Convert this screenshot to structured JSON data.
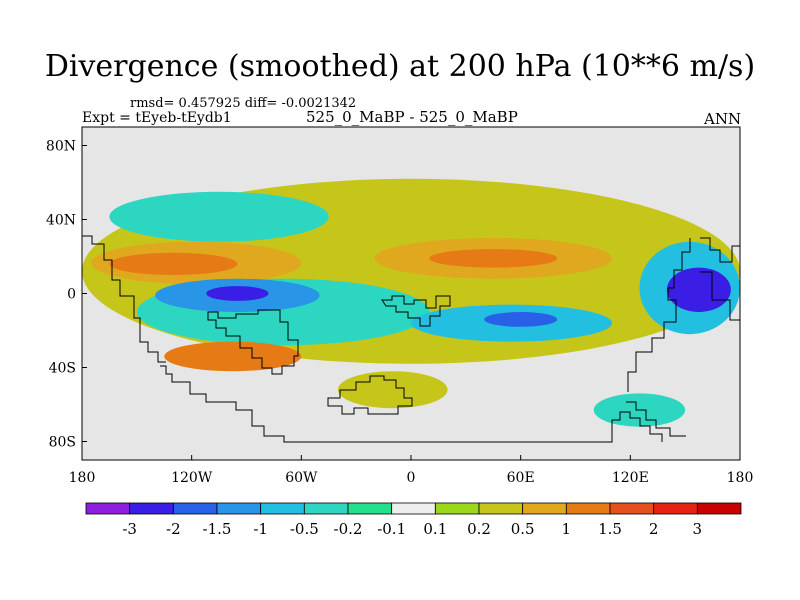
{
  "header": {
    "title": "Divergence (smoothed) at 200 hPa (10**6 m/s)",
    "stats": "rmsd= 0.457925 diff= -0.0021342",
    "experiment": "Expt = tEyeb-tEydb1",
    "cases": "525_0_MaBP - 525_0_MaBP",
    "season": "ANN"
  },
  "chart_data": {
    "type": "heatmap",
    "title": "Divergence (smoothed) at 200 hPa (10**6 m/s)",
    "xlabel": "",
    "ylabel": "",
    "xlim": [
      -180,
      180
    ],
    "ylim": [
      -90,
      90
    ],
    "x_ticks": [
      {
        "value": -180,
        "label": "180"
      },
      {
        "value": -120,
        "label": "120W"
      },
      {
        "value": -60,
        "label": "60W"
      },
      {
        "value": 0,
        "label": "0"
      },
      {
        "value": 60,
        "label": "60E"
      },
      {
        "value": 120,
        "label": "120E"
      },
      {
        "value": 180,
        "label": "180"
      }
    ],
    "y_ticks": [
      {
        "value": 80,
        "label": "80N"
      },
      {
        "value": 40,
        "label": "40N"
      },
      {
        "value": 0,
        "label": "0"
      },
      {
        "value": -40,
        "label": "40S"
      },
      {
        "value": -80,
        "label": "80S"
      }
    ],
    "background_color": "#e6e6e6",
    "colorbar": {
      "labels": [
        "-3",
        "-2",
        "-1.5",
        "-1",
        "-0.5",
        "-0.2",
        "-0.1",
        "0.1",
        "0.2",
        "0.5",
        "1",
        "1.5",
        "2",
        "3"
      ],
      "colors": [
        "#8c1ee0",
        "#3a1ee6",
        "#2860e8",
        "#2895e6",
        "#22bfe0",
        "#2dd6c1",
        "#22e08c",
        "#eeeeee",
        "#9cd81a",
        "#c6c61a",
        "#e0a81e",
        "#e67a14",
        "#e6501e",
        "#e62214",
        "#c80000"
      ]
    },
    "regions": [
      {
        "level": "0.2",
        "lon0": -180,
        "lon1": 180,
        "lat0": -38,
        "lat1": 62
      },
      {
        "level": "-0.2",
        "lon0": -165,
        "lon1": -45,
        "lat0": 28,
        "lat1": 55
      },
      {
        "level": "0.5",
        "lon0": -175,
        "lon1": -60,
        "lat0": 5,
        "lat1": 28
      },
      {
        "level": "1",
        "lon0": -165,
        "lon1": -95,
        "lat0": 10,
        "lat1": 22
      },
      {
        "level": "-0.2",
        "lon0": -150,
        "lon1": 10,
        "lat0": -28,
        "lat1": 8
      },
      {
        "level": "-1",
        "lon0": -140,
        "lon1": -50,
        "lat0": -10,
        "lat1": 8
      },
      {
        "level": "-2",
        "lon0": -112,
        "lon1": -78,
        "lat0": -4,
        "lat1": 4
      },
      {
        "level": "0.5",
        "lon0": -20,
        "lon1": 110,
        "lat0": 8,
        "lat1": 30
      },
      {
        "level": "1",
        "lon0": 10,
        "lon1": 80,
        "lat0": 14,
        "lat1": 24
      },
      {
        "level": "-0.5",
        "lon0": 0,
        "lon1": 110,
        "lat0": -26,
        "lat1": -6
      },
      {
        "level": "-1.5",
        "lon0": 40,
        "lon1": 80,
        "lat0": -18,
        "lat1": -10
      },
      {
        "level": "-0.5",
        "lon0": 125,
        "lon1": 180,
        "lat0": -22,
        "lat1": 28
      },
      {
        "level": "-2",
        "lon0": 140,
        "lon1": 175,
        "lat0": -10,
        "lat1": 14
      },
      {
        "level": "1",
        "lon0": -135,
        "lon1": -60,
        "lat0": -42,
        "lat1": -26
      },
      {
        "level": "0.2",
        "lon0": -40,
        "lon1": 20,
        "lat0": -62,
        "lat1": -42
      },
      {
        "level": "-0.2",
        "lon0": 100,
        "lon1": 150,
        "lat0": -72,
        "lat1": -54
      }
    ]
  }
}
